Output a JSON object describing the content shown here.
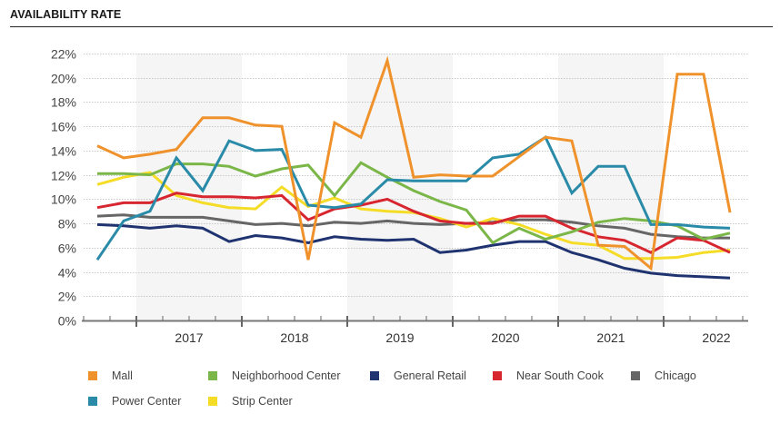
{
  "header": {
    "title": "AVAILABILITY RATE"
  },
  "chart_data": {
    "type": "line",
    "title": "AVAILABILITY RATE",
    "xlabel": "",
    "ylabel": "",
    "ylim": [
      0,
      22
    ],
    "yticks": [
      "0%",
      "2%",
      "4%",
      "6%",
      "8%",
      "10%",
      "12%",
      "14%",
      "16%",
      "18%",
      "20%",
      "22%"
    ],
    "ytick_values": [
      0,
      2,
      4,
      6,
      8,
      10,
      12,
      14,
      16,
      18,
      20,
      22
    ],
    "grid": true,
    "legend_position": "bottom",
    "x": [
      "2016 Q2",
      "2016 Q3",
      "2016 Q4",
      "2017 Q1",
      "2017 Q2",
      "2017 Q3",
      "2017 Q4",
      "2018 Q1",
      "2018 Q2",
      "2018 Q3",
      "2018 Q4",
      "2019 Q1",
      "2019 Q2",
      "2019 Q3",
      "2019 Q4",
      "2020 Q1",
      "2020 Q2",
      "2020 Q3",
      "2020 Q4",
      "2021 Q1",
      "2021 Q2",
      "2021 Q3",
      "2021 Q4",
      "2022 Q1",
      "2022 Q2"
    ],
    "year_labels": [
      "2017",
      "2018",
      "2019",
      "2020",
      "2021",
      "2022"
    ],
    "shaded_years": [
      "2017",
      "2019",
      "2021"
    ],
    "series": [
      {
        "name": "Mall",
        "color": "#F0922B",
        "values": [
          14.4,
          13.4,
          13.7,
          14.1,
          16.7,
          16.7,
          16.1,
          16.0,
          5.0,
          16.3,
          15.1,
          21.4,
          11.8,
          12.0,
          11.9,
          11.9,
          13.5,
          15.1,
          14.8,
          6.2,
          6.1,
          4.3,
          20.3,
          20.3,
          8.9
        ]
      },
      {
        "name": "Neighborhood Center",
        "color": "#7AB648",
        "values": [
          12.1,
          12.1,
          12.0,
          12.9,
          12.9,
          12.7,
          11.9,
          12.5,
          12.8,
          10.3,
          13.0,
          11.8,
          10.7,
          9.8,
          9.1,
          6.4,
          7.6,
          6.7,
          7.3,
          8.1,
          8.4,
          8.2,
          7.8,
          6.7,
          7.2
        ]
      },
      {
        "name": "General Retail",
        "color": "#1F3370",
        "values": [
          7.9,
          7.8,
          7.6,
          7.8,
          7.6,
          6.5,
          7.0,
          6.8,
          6.4,
          6.9,
          6.7,
          6.6,
          6.7,
          5.6,
          5.8,
          6.2,
          6.5,
          6.5,
          5.6,
          5.0,
          4.3,
          3.9,
          3.7,
          3.6,
          3.5
        ]
      },
      {
        "name": "Near South Cook",
        "color": "#D7262F",
        "values": [
          9.3,
          9.7,
          9.7,
          10.5,
          10.2,
          10.2,
          10.1,
          10.3,
          8.3,
          9.2,
          9.5,
          10.0,
          9.0,
          8.2,
          8.0,
          8.0,
          8.6,
          8.6,
          7.6,
          6.9,
          6.6,
          5.6,
          6.8,
          6.6,
          5.6
        ]
      },
      {
        "name": "Chicago",
        "color": "#666666",
        "values": [
          8.6,
          8.7,
          8.5,
          8.5,
          8.5,
          8.2,
          7.9,
          8.0,
          7.8,
          8.1,
          8.0,
          8.2,
          8.0,
          7.9,
          8.0,
          8.1,
          8.3,
          8.3,
          8.1,
          7.8,
          7.6,
          7.1,
          6.9,
          6.8,
          6.8
        ]
      },
      {
        "name": "Power Center",
        "color": "#2A8BA8",
        "values": [
          5.0,
          8.2,
          9.0,
          13.4,
          10.7,
          14.8,
          14.0,
          14.1,
          9.5,
          9.3,
          9.6,
          11.6,
          11.5,
          11.5,
          11.5,
          13.4,
          13.7,
          15.1,
          10.5,
          12.7,
          12.7,
          7.9,
          7.9,
          7.7,
          7.6
        ]
      },
      {
        "name": "Strip Center",
        "color": "#F5DC26",
        "values": [
          11.2,
          11.8,
          12.2,
          10.3,
          9.7,
          9.3,
          9.2,
          11.0,
          9.4,
          10.1,
          9.2,
          9.0,
          8.9,
          8.4,
          7.7,
          8.4,
          7.9,
          7.1,
          6.4,
          6.2,
          5.1,
          5.1,
          5.2,
          5.6,
          5.8
        ]
      }
    ]
  },
  "legend": {
    "items": [
      {
        "label": "Mall",
        "color": "#F0922B"
      },
      {
        "label": "Neighborhood Center",
        "color": "#7AB648"
      },
      {
        "label": "General Retail",
        "color": "#1F3370"
      },
      {
        "label": "Near South Cook",
        "color": "#D7262F"
      },
      {
        "label": "Chicago",
        "color": "#666666"
      },
      {
        "label": "Power Center",
        "color": "#2A8BA8"
      },
      {
        "label": "Strip Center",
        "color": "#F5DC26"
      }
    ]
  }
}
